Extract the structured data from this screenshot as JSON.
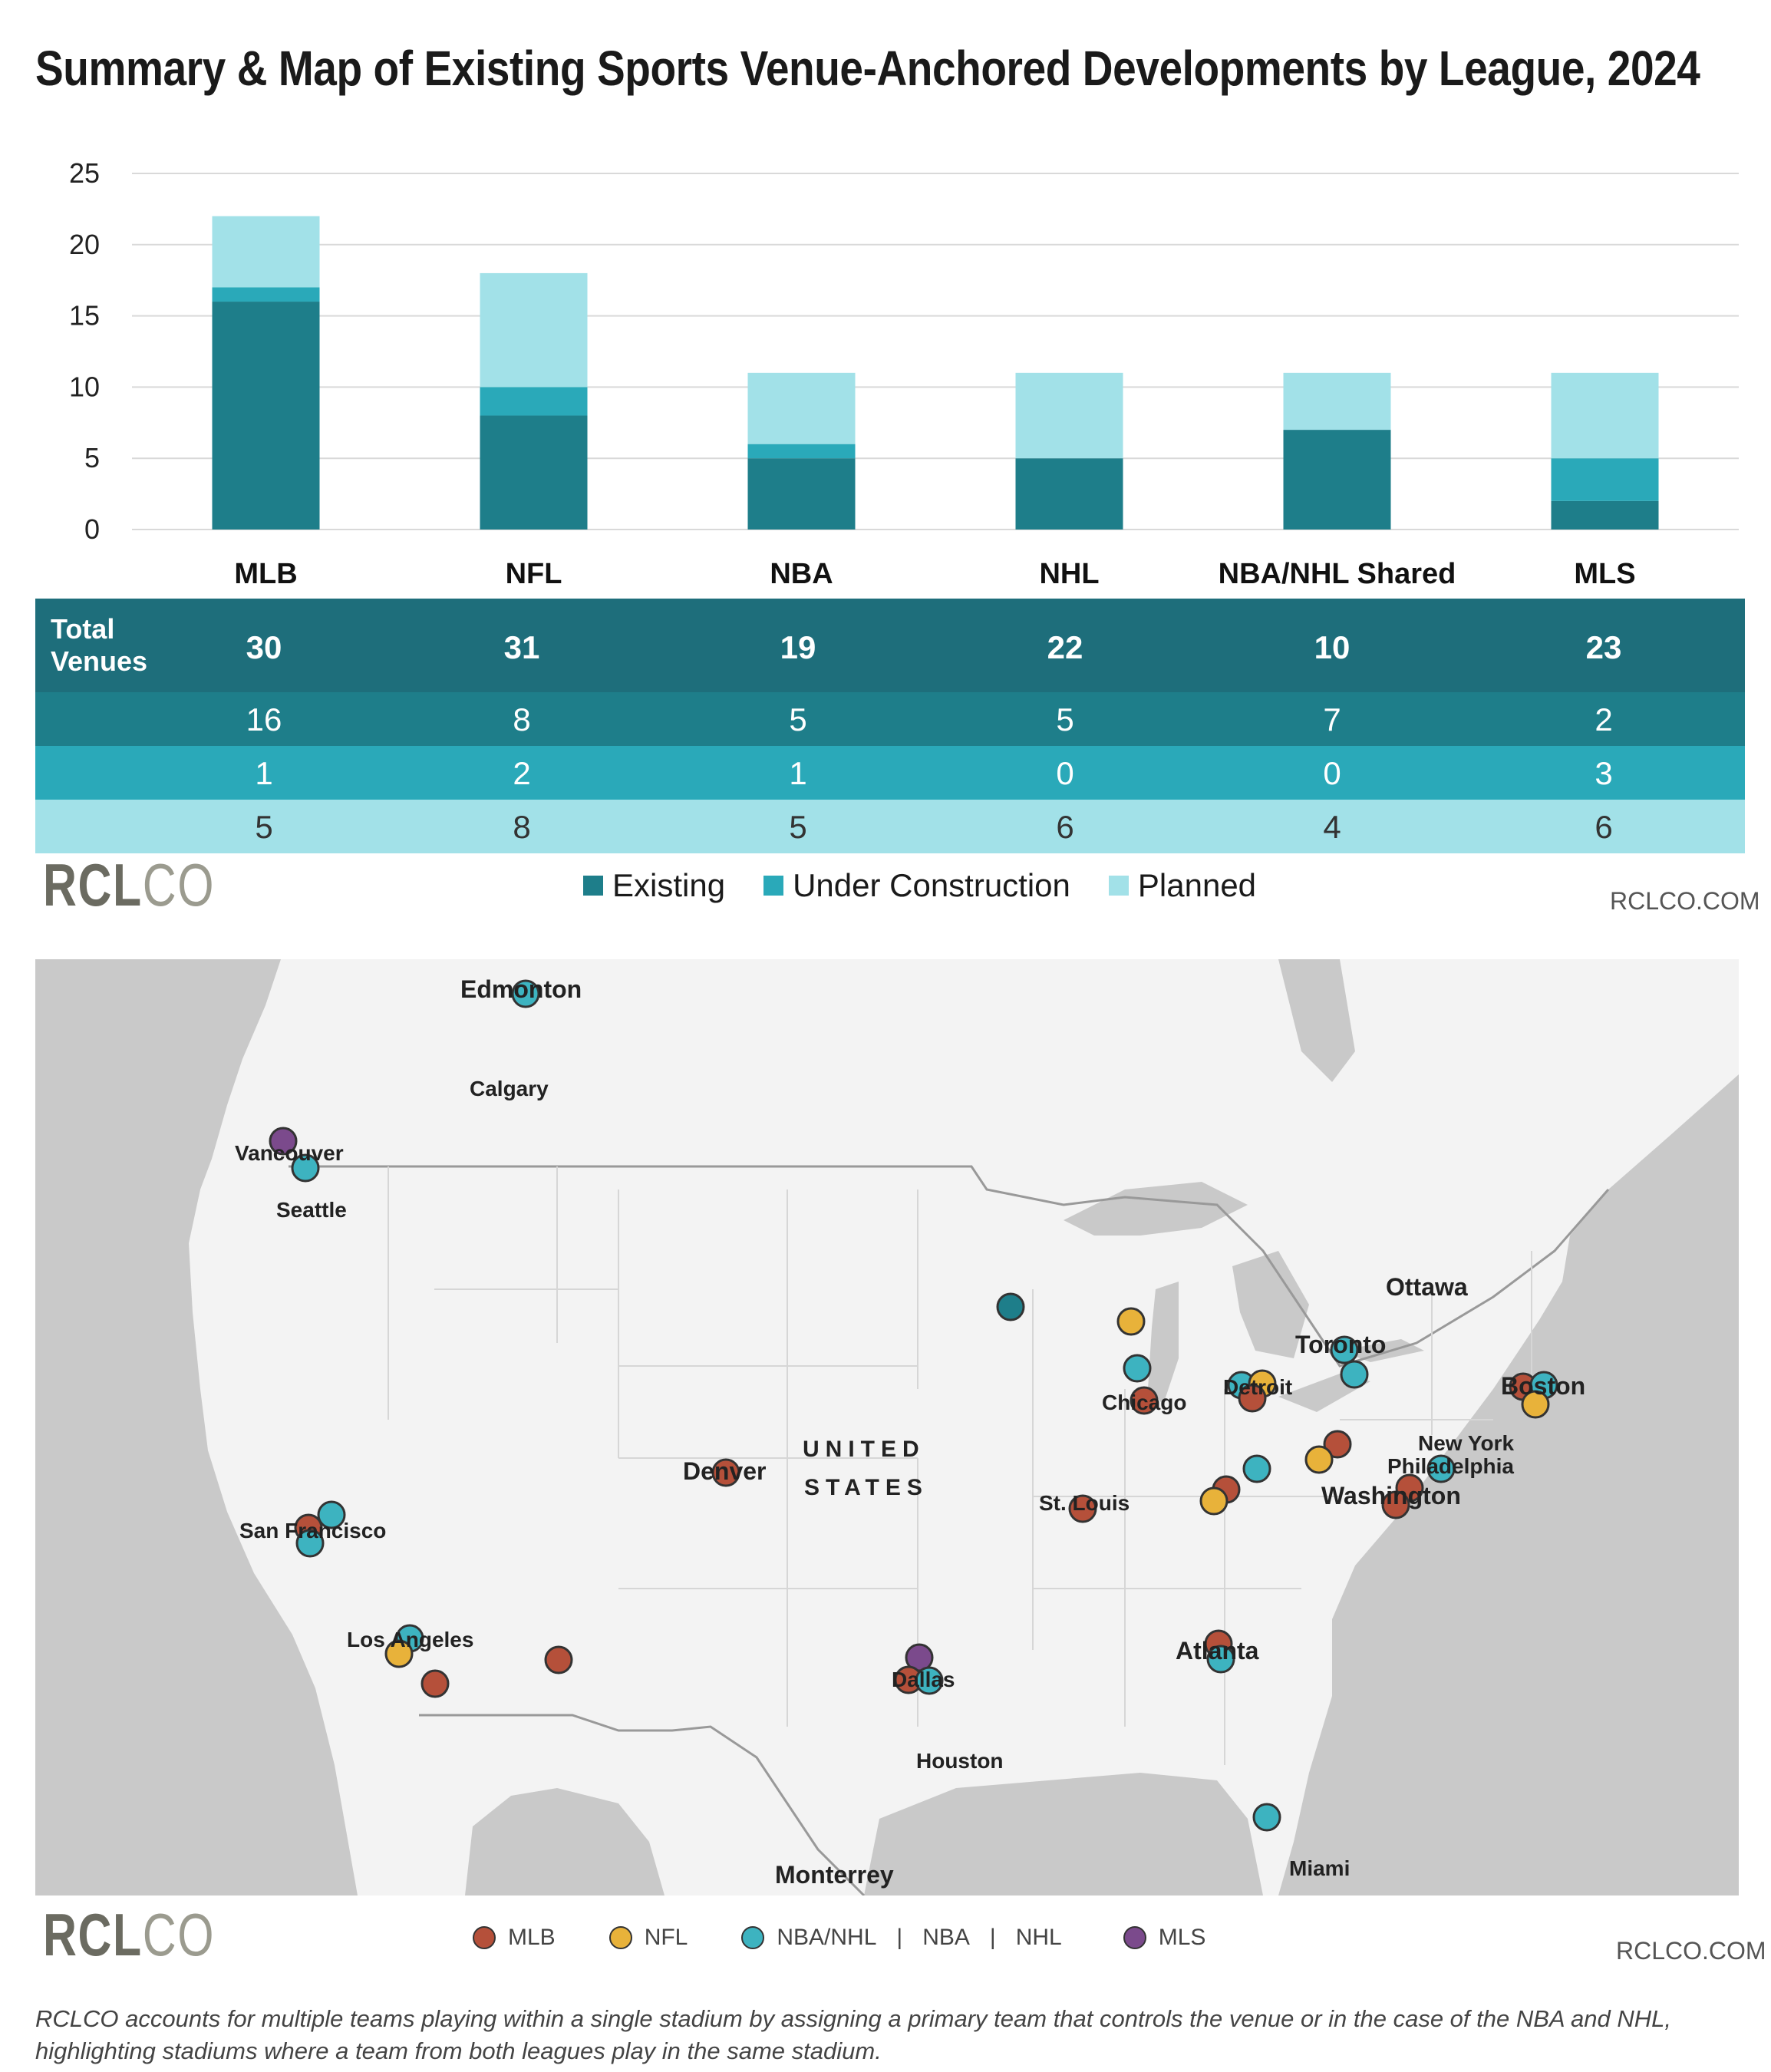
{
  "title": "Summary & Map of Existing Sports Venue-Anchored Developments by League, 2024",
  "colors": {
    "existing": "#1e7e8a",
    "under_construction": "#2aa9b9",
    "planned": "#a2e1e8",
    "mlb": "#b5503a",
    "nfl": "#e8b23a",
    "nba_nhl": "#3db3c0",
    "mls": "#7b4a8c"
  },
  "chart_data": {
    "type": "bar",
    "stacked": true,
    "categories": [
      "MLB",
      "NFL",
      "NBA",
      "NHL",
      "NBA/NHL Shared",
      "MLS"
    ],
    "series": [
      {
        "name": "Existing",
        "values": [
          16,
          8,
          5,
          5,
          7,
          2
        ]
      },
      {
        "name": "Under Construction",
        "values": [
          1,
          2,
          1,
          0,
          0,
          3
        ]
      },
      {
        "name": "Planned",
        "values": [
          5,
          8,
          5,
          6,
          4,
          6
        ]
      }
    ],
    "ylim": [
      0,
      25
    ],
    "yticks": [
      "0",
      "5",
      "10",
      "15",
      "20",
      "25"
    ],
    "grid": true,
    "legend_position": "bottom"
  },
  "table": {
    "total_label_line1": "Total",
    "total_label_line2": "Venues",
    "totals": [
      "30",
      "31",
      "19",
      "22",
      "10",
      "23"
    ],
    "existing": [
      "16",
      "8",
      "5",
      "5",
      "7",
      "2"
    ],
    "under_construction": [
      "1",
      "2",
      "1",
      "0",
      "0",
      "3"
    ],
    "planned": [
      "5",
      "8",
      "5",
      "6",
      "4",
      "6"
    ]
  },
  "legend": {
    "existing": "Existing",
    "under_construction": "Under Construction",
    "planned": "Planned"
  },
  "brand": {
    "logo_bold": "RCL",
    "logo_light": "CO",
    "site": "RCLCO.COM"
  },
  "map": {
    "country_line1": "UNITED",
    "country_line2": "STATES",
    "cities": {
      "edmonton": "Edmonton",
      "calgary": "Calgary",
      "vancouver": "Vancouver",
      "seattle": "Seattle",
      "ottawa": "Ottawa",
      "toronto": "Toronto",
      "boston": "Boston",
      "detroit": "Detroit",
      "chicago": "Chicago",
      "new_york": "New York",
      "philadelphia": "Philadelphia",
      "washington": "Washington",
      "denver": "Denver",
      "st_louis": "St. Louis",
      "san_francisco": "San Francisco",
      "los_angeles": "Los Angeles",
      "atlanta": "Atlanta",
      "dallas": "Dallas",
      "houston": "Houston",
      "miami": "Miami",
      "monterrey": "Monterrey"
    },
    "legend": {
      "mlb": "MLB",
      "nfl": "NFL",
      "nba_nhl": "NBA/NHL",
      "nba": "NBA",
      "nhl": "NHL",
      "mls": "MLS"
    }
  },
  "note": "RCLCO accounts for multiple teams playing within a single stadium by assigning a primary team that controls the venue or in the case of the NBA and NHL, highlighting stadiums where a team from both leagues play in the same stadium."
}
